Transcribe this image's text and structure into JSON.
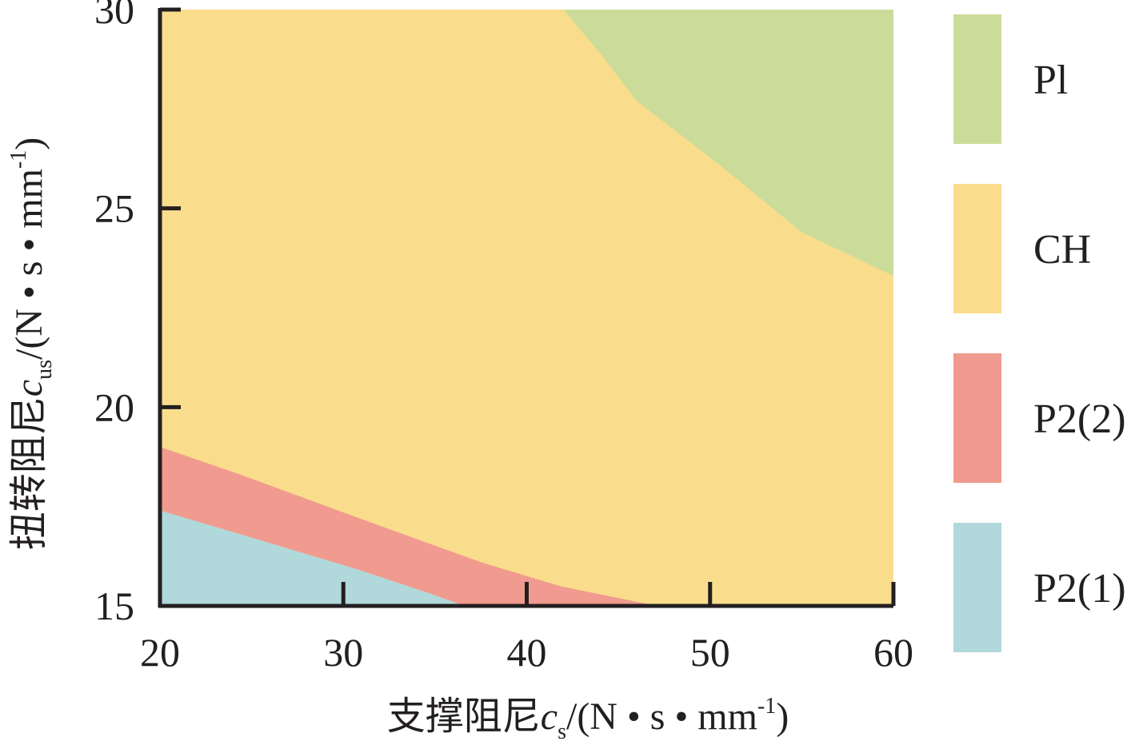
{
  "chart_data": {
    "type": "region",
    "xlabel": [
      "支撑阻尼",
      "c",
      "s",
      "/(N • s • mm",
      "-1",
      ")"
    ],
    "ylabel": [
      "扭转阻尼",
      "c",
      "us",
      "/(N • s • mm",
      "-1",
      ")"
    ],
    "xlim": [
      20,
      60
    ],
    "ylim": [
      15,
      30
    ],
    "xticks": [
      20,
      30,
      40,
      50,
      60
    ],
    "yticks": [
      15,
      20,
      25,
      30
    ],
    "regions": [
      {
        "name": "Pl",
        "color": "#cbdc9a",
        "x": [
          42,
          60,
          60,
          55,
          50.5,
          46,
          44
        ],
        "y": [
          30,
          30,
          23.3,
          24.4,
          26.1,
          27.7,
          28.9
        ]
      },
      {
        "name": "CH",
        "color": "#f9dd8c",
        "x": [
          20,
          60,
          60,
          20
        ],
        "y": [
          15,
          15,
          30,
          30
        ]
      },
      {
        "name": "P2(2)",
        "color": "#f19a8f",
        "x": [
          20,
          24.4,
          30.9,
          37.5,
          41.8,
          47.1,
          36.6,
          34.8,
          30.9,
          24.4,
          20
        ],
        "y": [
          19.0,
          18.3,
          17.2,
          16.1,
          15.5,
          15,
          15,
          15.3,
          15.9,
          16.8,
          17.4
        ]
      },
      {
        "name": "P2(1)",
        "color": "#b1d8da",
        "x": [
          20,
          36.6,
          34.8,
          30.9,
          24.4,
          20
        ],
        "y": [
          15,
          15,
          15.3,
          15.9,
          16.8,
          17.4
        ]
      }
    ]
  }
}
